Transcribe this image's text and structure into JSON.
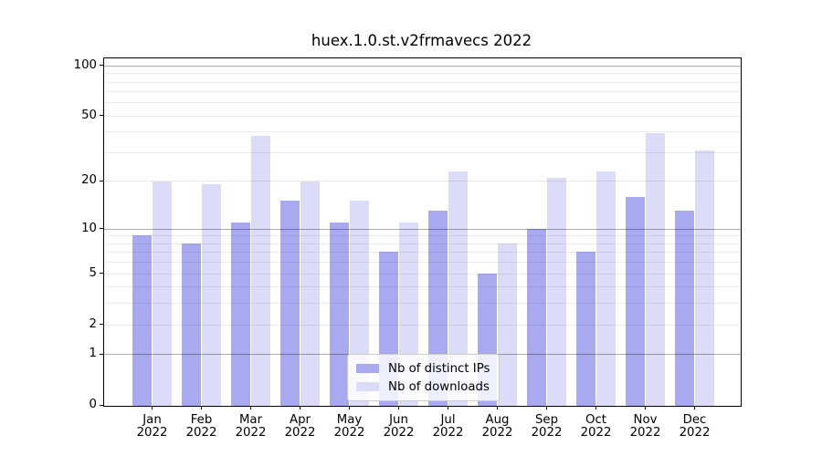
{
  "chart_data": {
    "type": "bar",
    "title": "huex.1.0.st.v2frmavecs 2022",
    "categories": [
      "Jan 2022",
      "Feb 2022",
      "Mar 2022",
      "Apr 2022",
      "May 2022",
      "Jun 2022",
      "Jul 2022",
      "Aug 2022",
      "Sep 2022",
      "Oct 2022",
      "Nov 2022",
      "Dec 2022"
    ],
    "series": [
      {
        "name": "Nb of distinct IPs",
        "color": "#a9a9f0",
        "values": [
          9,
          8,
          11,
          15,
          11,
          7,
          13,
          5,
          10,
          7,
          16,
          13
        ]
      },
      {
        "name": "Nb of downloads",
        "color": "#dcdcf8",
        "values": [
          20,
          19,
          38,
          20,
          15,
          11,
          23,
          8,
          21,
          23,
          39,
          31
        ]
      }
    ],
    "xlabel": "",
    "ylabel": "",
    "y_scale": "log1p",
    "ylim": [
      0,
      110
    ],
    "y_ticks": [
      0,
      1,
      2,
      5,
      10,
      20,
      50,
      100
    ],
    "grid": {
      "on": true,
      "major": [
        1,
        10,
        100
      ],
      "minor": [
        2,
        3,
        4,
        5,
        6,
        7,
        8,
        9,
        20,
        30,
        40,
        50,
        60,
        70,
        80,
        90
      ]
    },
    "legend_position": "bottom-center"
  }
}
